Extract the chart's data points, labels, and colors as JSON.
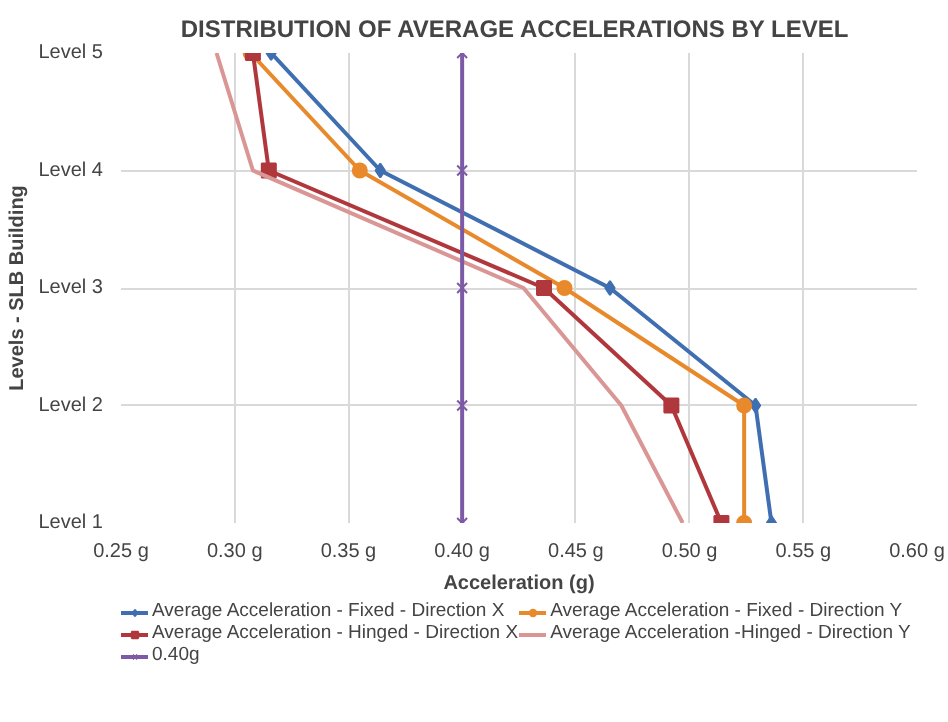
{
  "chart_data": {
    "type": "line",
    "orientation": "horizontal",
    "title": "DISTRIBUTION OF AVERAGE ACCELERATIONS  BY LEVEL",
    "xlabel": "Acceleration (g)",
    "ylabel": "Levels - SLB Building",
    "categories": [
      "Level 5",
      "Level 4",
      "Level 3",
      "Level 2",
      "Level 1"
    ],
    "xlim": [
      0.25,
      0.6
    ],
    "xticks": [
      {
        "value": 0.25,
        "label": "0.25 g"
      },
      {
        "value": 0.3,
        "label": "0.30 g"
      },
      {
        "value": 0.35,
        "label": "0.35 g"
      },
      {
        "value": 0.4,
        "label": "0.40 g"
      },
      {
        "value": 0.45,
        "label": "0.45 g"
      },
      {
        "value": 0.5,
        "label": "0.50 g"
      },
      {
        "value": 0.55,
        "label": "0.55 g"
      },
      {
        "value": 0.6,
        "label": "0.60 g"
      }
    ],
    "grid": true,
    "legend": "bottom",
    "series": [
      {
        "name": "Average Acceleration - Fixed - Direction X",
        "color": "#3f6fb0",
        "marker": "diamond",
        "values": [
          0.316,
          0.364,
          0.465,
          0.529,
          0.536
        ]
      },
      {
        "name": "Average Acceleration - Fixed - Direction Y",
        "color": "#e8892b",
        "marker": "circle",
        "values": [
          0.307,
          0.355,
          0.445,
          0.524,
          0.524
        ]
      },
      {
        "name": "Average Acceleration - Hinged - Direction X",
        "color": "#b0373c",
        "marker": "square",
        "values": [
          0.308,
          0.315,
          0.436,
          0.492,
          0.514
        ]
      },
      {
        "name": "Average Acceleration -Hinged - Direction Y",
        "color": "#d99694",
        "marker": "none",
        "values": [
          0.292,
          0.308,
          0.427,
          0.47,
          0.497
        ]
      },
      {
        "name": "0.40g",
        "color": "#7d5aa6",
        "marker": "cross",
        "values": [
          0.4,
          0.4,
          0.4,
          0.4,
          0.4
        ]
      }
    ]
  }
}
